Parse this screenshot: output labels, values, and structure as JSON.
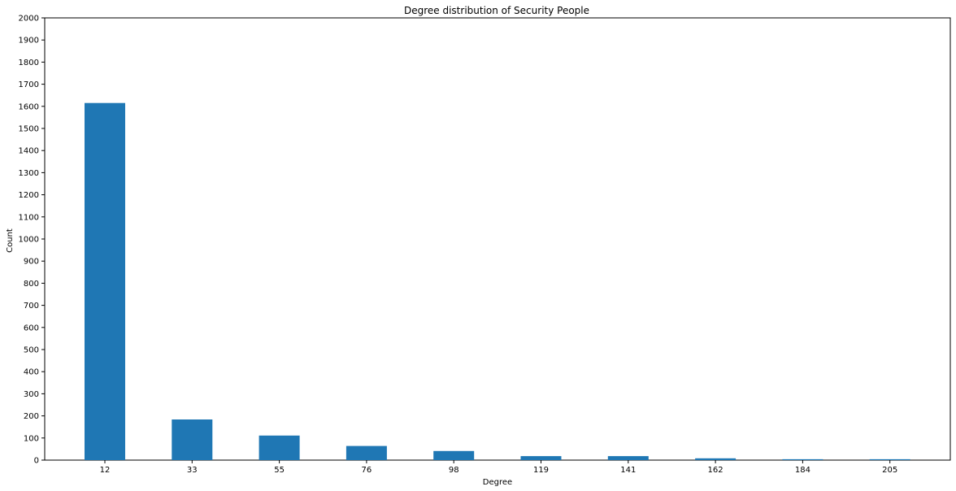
{
  "chart_data": {
    "type": "bar",
    "title": "Degree distribution of Security People",
    "xlabel": "Degree",
    "ylabel": "Count",
    "categories": [
      "12",
      "33",
      "55",
      "76",
      "98",
      "119",
      "141",
      "162",
      "184",
      "205"
    ],
    "values": [
      1615,
      184,
      111,
      64,
      41,
      18,
      18,
      8,
      4,
      4
    ],
    "ylim": [
      0,
      2000
    ],
    "yticks": [
      0,
      100,
      200,
      300,
      400,
      500,
      600,
      700,
      800,
      900,
      1000,
      1100,
      1200,
      1300,
      1400,
      1500,
      1600,
      1700,
      1800,
      1900,
      2000
    ],
    "grid": false,
    "bar_color": "#1f77b4"
  }
}
